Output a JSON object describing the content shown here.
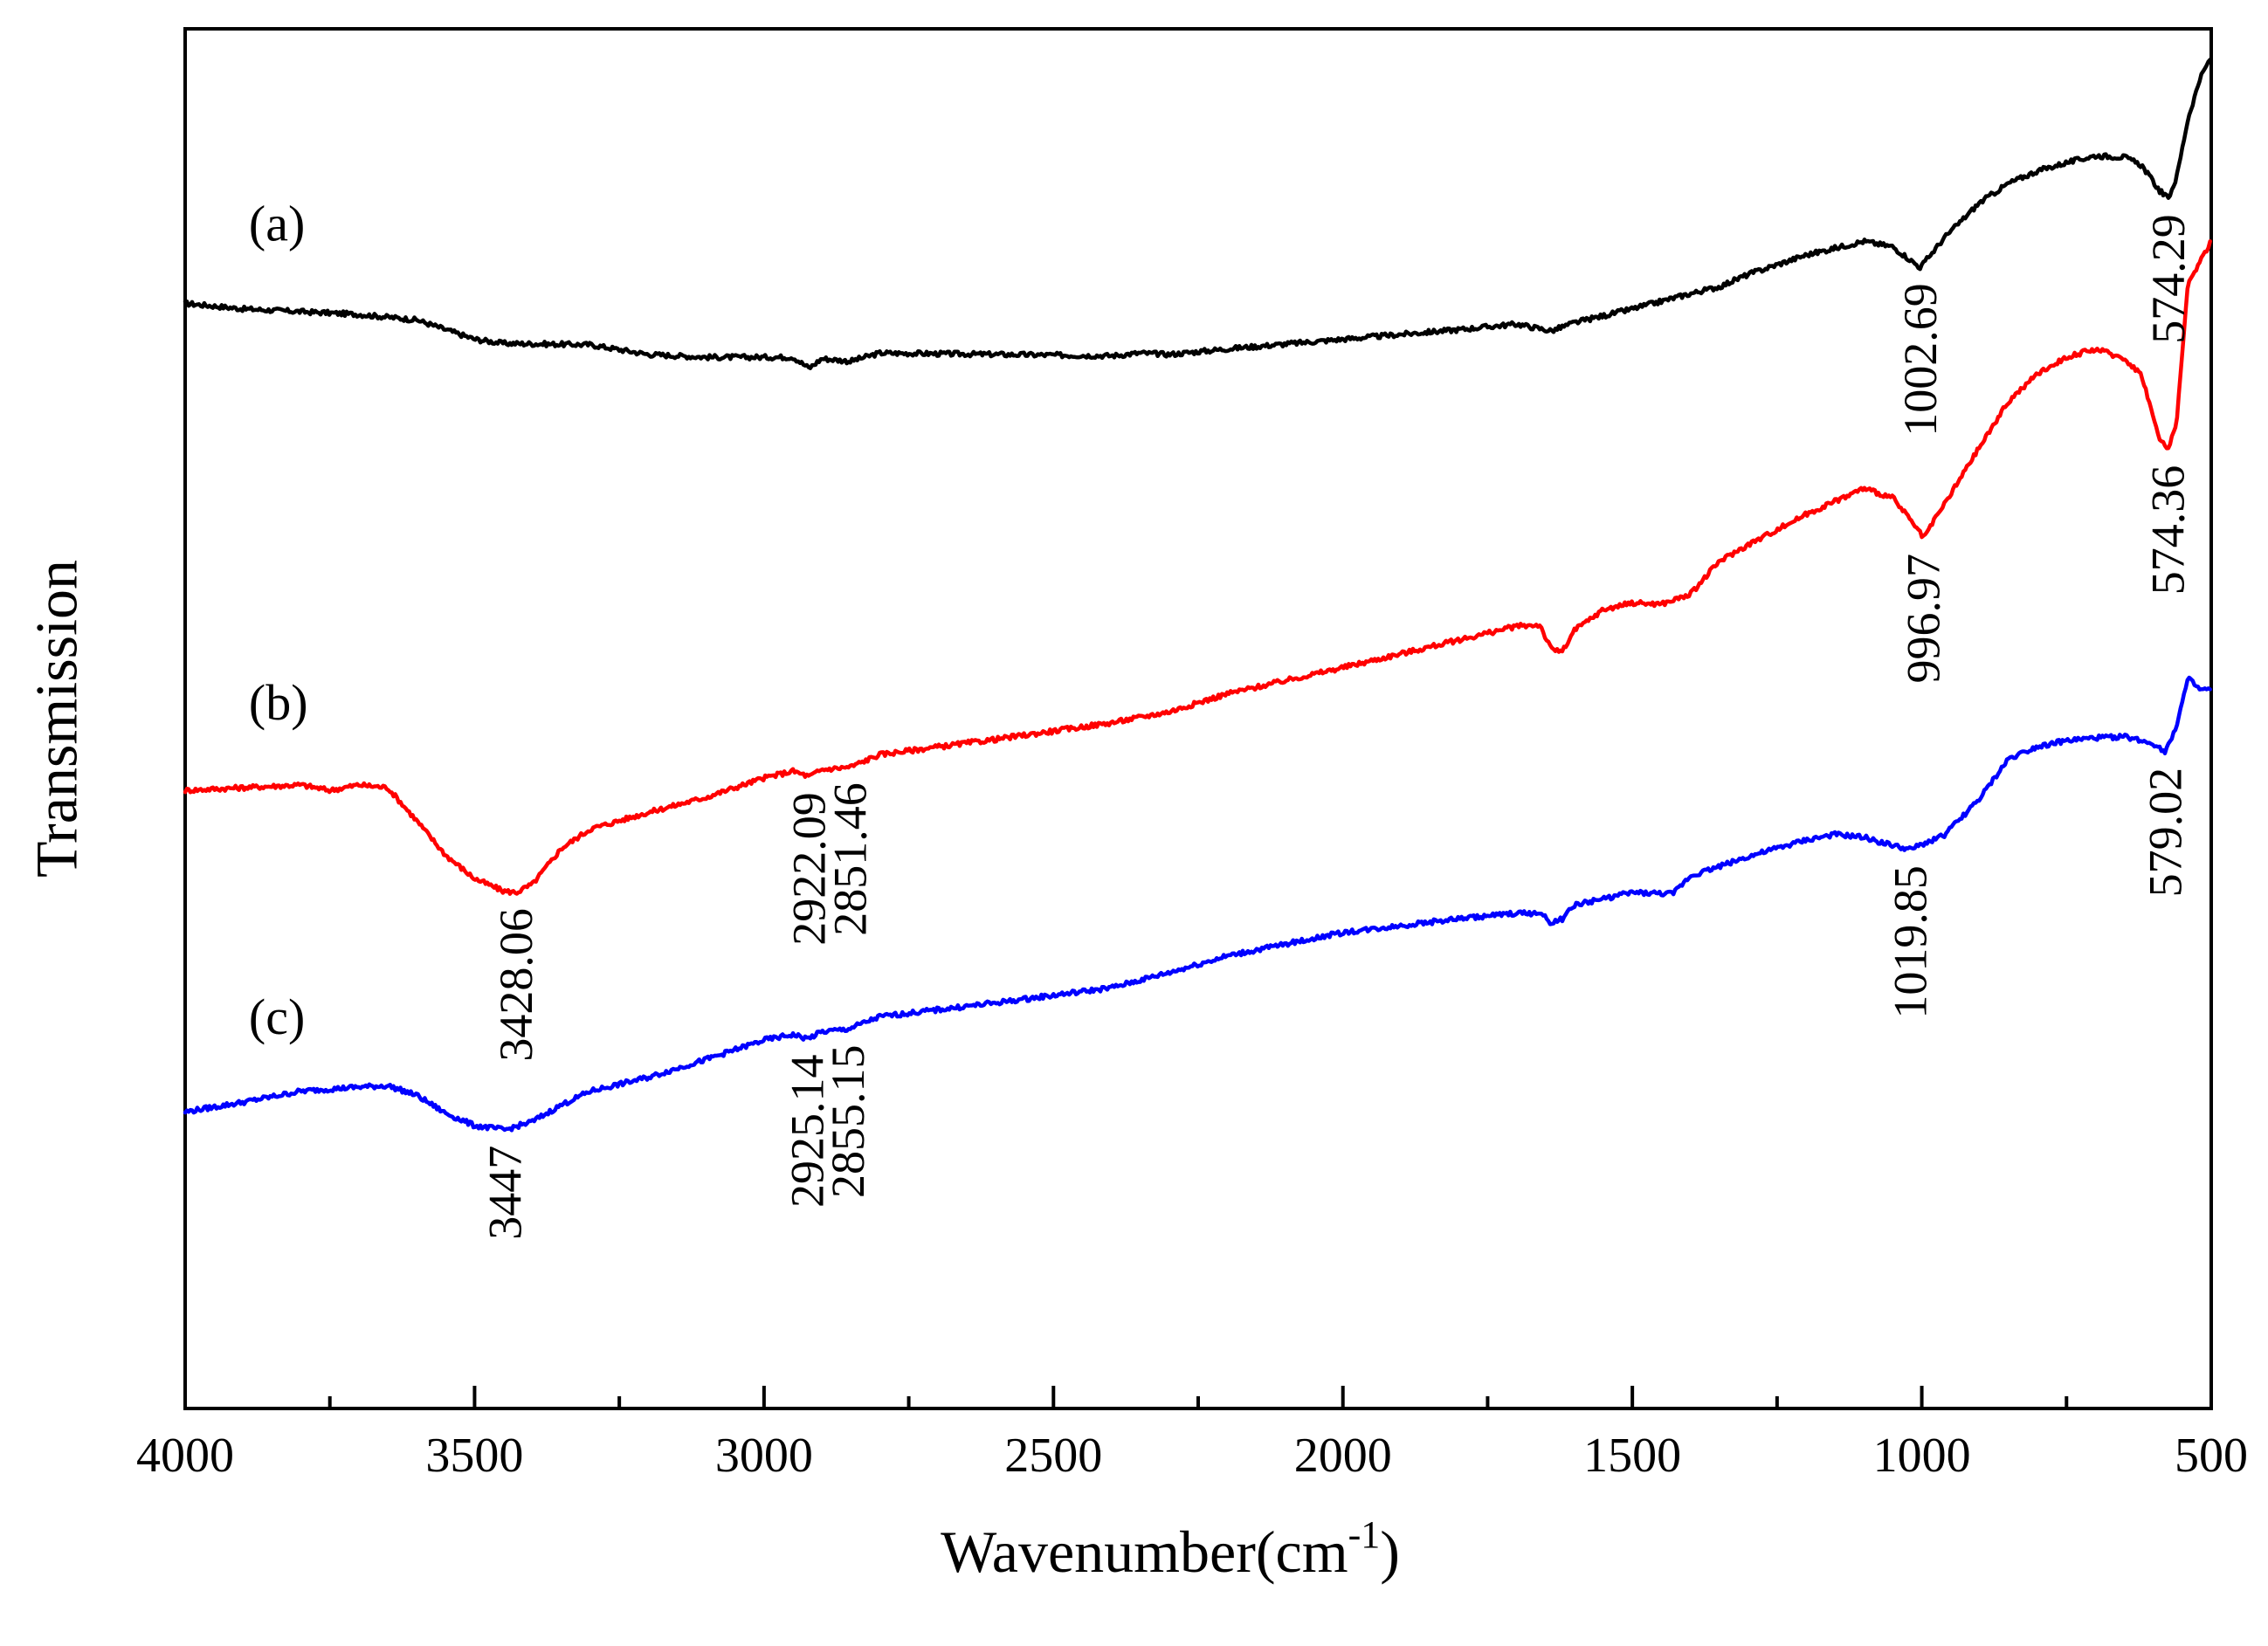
{
  "chart_data": {
    "type": "line",
    "title": "",
    "xlabel": "Wavenumber(cm",
    "xlabel_superscript": "-1",
    "xlabel_suffix": ")",
    "ylabel": "Transmission",
    "xlim": [
      4000,
      500
    ],
    "x_reversed": true,
    "y_ticks_shown": false,
    "grid": false,
    "x_ticks": [
      4000,
      3500,
      3000,
      2500,
      2000,
      1500,
      1000,
      500
    ],
    "x_tick_labels": [
      "4000",
      "3500",
      "3000",
      "2500",
      "2000",
      "1500",
      "1000",
      "500"
    ],
    "ylim": [
      0,
      100
    ],
    "series": [
      {
        "name": "(a)",
        "color": "#000000",
        "points": [
          [
            4000,
            80.1
          ],
          [
            3900,
            79.7
          ],
          [
            3800,
            79.5
          ],
          [
            3700,
            79.3
          ],
          [
            3600,
            78.9
          ],
          [
            3500,
            77.5
          ],
          [
            3450,
            77.2
          ],
          [
            3300,
            77.1
          ],
          [
            3200,
            76.4
          ],
          [
            3100,
            76.2
          ],
          [
            3000,
            76.2
          ],
          [
            2950,
            76.2
          ],
          [
            2922,
            75.4
          ],
          [
            2900,
            76.1
          ],
          [
            2851,
            75.9
          ],
          [
            2800,
            76.5
          ],
          [
            2600,
            76.4
          ],
          [
            2400,
            76.3
          ],
          [
            2350,
            76.5
          ],
          [
            2300,
            76.4
          ],
          [
            2200,
            76.8
          ],
          [
            2000,
            77.5
          ],
          [
            1800,
            78.2
          ],
          [
            1700,
            78.6
          ],
          [
            1640,
            78.1
          ],
          [
            1600,
            78.7
          ],
          [
            1500,
            79.7
          ],
          [
            1400,
            80.8
          ],
          [
            1350,
            81.3
          ],
          [
            1300,
            82.2
          ],
          [
            1200,
            83.6
          ],
          [
            1100,
            84.6
          ],
          [
            1050,
            84.2
          ],
          [
            1002.7,
            82.7
          ],
          [
            960,
            84.9
          ],
          [
            900,
            87.4
          ],
          [
            850,
            88.8
          ],
          [
            800,
            89.7
          ],
          [
            750,
            90.3
          ],
          [
            700,
            90.8
          ],
          [
            650,
            90.7
          ],
          [
            620,
            90.1
          ],
          [
            590,
            88.3
          ],
          [
            574.3,
            87.7
          ],
          [
            560,
            89.2
          ],
          [
            540,
            93.5
          ],
          [
            520,
            96.3
          ],
          [
            500,
            98.0
          ]
        ]
      },
      {
        "name": "(b)",
        "color": "#ff0000",
        "points": [
          [
            4000,
            44.8
          ],
          [
            3900,
            45.0
          ],
          [
            3800,
            45.2
          ],
          [
            3750,
            44.8
          ],
          [
            3700,
            45.2
          ],
          [
            3650,
            45.0
          ],
          [
            3600,
            42.6
          ],
          [
            3550,
            40.1
          ],
          [
            3500,
            38.4
          ],
          [
            3450,
            37.5
          ],
          [
            3428,
            37.4
          ],
          [
            3400,
            38.0
          ],
          [
            3350,
            40.6
          ],
          [
            3300,
            42.0
          ],
          [
            3200,
            43.2
          ],
          [
            3100,
            44.3
          ],
          [
            3000,
            45.7
          ],
          [
            2950,
            46.2
          ],
          [
            2922,
            45.8
          ],
          [
            2900,
            46.3
          ],
          [
            2851,
            46.5
          ],
          [
            2800,
            47.4
          ],
          [
            2600,
            48.5
          ],
          [
            2400,
            49.7
          ],
          [
            2300,
            50.5
          ],
          [
            2200,
            51.8
          ],
          [
            2000,
            53.7
          ],
          [
            1800,
            55.7
          ],
          [
            1700,
            56.7
          ],
          [
            1660,
            56.8
          ],
          [
            1640,
            55.0
          ],
          [
            1620,
            54.9
          ],
          [
            1600,
            56.4
          ],
          [
            1550,
            57.9
          ],
          [
            1500,
            58.4
          ],
          [
            1450,
            58.3
          ],
          [
            1400,
            59.0
          ],
          [
            1350,
            61.4
          ],
          [
            1300,
            62.6
          ],
          [
            1200,
            64.8
          ],
          [
            1100,
            66.7
          ],
          [
            1050,
            66.0
          ],
          [
            1020,
            64.4
          ],
          [
            997,
            63.1
          ],
          [
            960,
            65.6
          ],
          [
            900,
            69.7
          ],
          [
            850,
            73.0
          ],
          [
            800,
            75.0
          ],
          [
            750,
            76.2
          ],
          [
            700,
            76.8
          ],
          [
            650,
            76.1
          ],
          [
            620,
            74.9
          ],
          [
            590,
            70.3
          ],
          [
            574.4,
            69.5
          ],
          [
            560,
            71.5
          ],
          [
            540,
            81.5
          ],
          [
            520,
            83.1
          ],
          [
            500,
            84.6
          ]
        ]
      },
      {
        "name": "(c)",
        "color": "#0000ff",
        "points": [
          [
            4000,
            21.5
          ],
          [
            3900,
            22.2
          ],
          [
            3800,
            23.0
          ],
          [
            3700,
            23.3
          ],
          [
            3650,
            23.4
          ],
          [
            3600,
            22.7
          ],
          [
            3550,
            21.4
          ],
          [
            3500,
            20.5
          ],
          [
            3447,
            20.2
          ],
          [
            3400,
            20.8
          ],
          [
            3350,
            22.0
          ],
          [
            3300,
            23.0
          ],
          [
            3200,
            24.0
          ],
          [
            3100,
            25.3
          ],
          [
            3000,
            26.7
          ],
          [
            2950,
            27.1
          ],
          [
            2925,
            26.8
          ],
          [
            2900,
            27.3
          ],
          [
            2855,
            27.5
          ],
          [
            2800,
            28.4
          ],
          [
            2600,
            29.4
          ],
          [
            2400,
            30.5
          ],
          [
            2300,
            31.6
          ],
          [
            2200,
            32.8
          ],
          [
            2000,
            34.5
          ],
          [
            1800,
            35.5
          ],
          [
            1700,
            35.9
          ],
          [
            1660,
            35.9
          ],
          [
            1640,
            35.2
          ],
          [
            1620,
            35.5
          ],
          [
            1600,
            36.5
          ],
          [
            1500,
            37.4
          ],
          [
            1430,
            37.3
          ],
          [
            1400,
            38.6
          ],
          [
            1300,
            40.0
          ],
          [
            1200,
            41.2
          ],
          [
            1150,
            41.6
          ],
          [
            1100,
            41.4
          ],
          [
            1050,
            40.8
          ],
          [
            1020,
            40.5
          ],
          [
            960,
            41.6
          ],
          [
            900,
            44.2
          ],
          [
            850,
            47.1
          ],
          [
            800,
            48.0
          ],
          [
            750,
            48.4
          ],
          [
            700,
            48.6
          ],
          [
            650,
            48.7
          ],
          [
            600,
            48.2
          ],
          [
            579,
            47.6
          ],
          [
            560,
            49.5
          ],
          [
            540,
            52.9
          ],
          [
            520,
            52.1
          ],
          [
            500,
            52.1
          ]
        ]
      }
    ],
    "series_labels": [
      {
        "text": "(a)",
        "series": "(a)"
      },
      {
        "text": "(b)",
        "series": "(b)"
      },
      {
        "text": "(c)",
        "series": "(c)"
      }
    ],
    "peak_annotations": [
      {
        "text": "574.29",
        "x": 574.29,
        "series": "(a)"
      },
      {
        "text": "1002.69",
        "x": 1002.69,
        "series": "(a)"
      },
      {
        "text": "3428.06",
        "x": 3428.06,
        "series": "(b)"
      },
      {
        "text": "2922.09",
        "x": 2922.09,
        "series": "(b)"
      },
      {
        "text": "2851.46",
        "x": 2851.46,
        "series": "(b)"
      },
      {
        "text": "996.97",
        "x": 996.97,
        "series": "(b)"
      },
      {
        "text": "574.36",
        "x": 574.36,
        "series": "(b)"
      },
      {
        "text": "3447",
        "x": 3447,
        "series": "(c)"
      },
      {
        "text": "2925.14",
        "x": 2925.14,
        "series": "(c)"
      },
      {
        "text": "2855.15",
        "x": 2855.15,
        "series": "(c)"
      },
      {
        "text": "1019.85",
        "x": 1019.85,
        "series": "(c)"
      },
      {
        "text": "579.02",
        "x": 579.02,
        "series": "(c)"
      }
    ]
  }
}
